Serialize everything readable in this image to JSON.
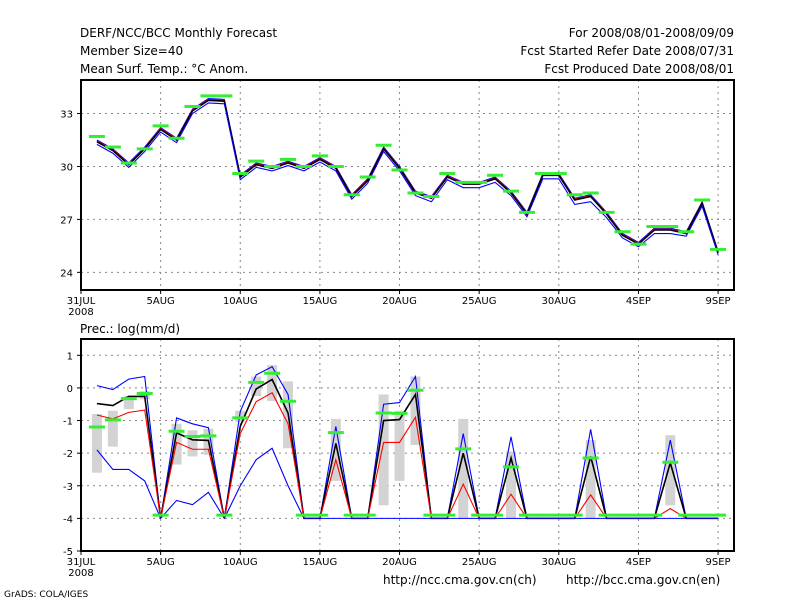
{
  "header": {
    "title": "DERF/NCC/BCC Monthly Forecast",
    "member_size": "Member Size=40",
    "variable": "Mean Surf. Temp.: °C Anom.",
    "period": "For 2008/08/01-2008/09/09",
    "started": "Fcst Started Refer Date 2008/07/31",
    "produced": "Fcst Produced Date 2008/08/01"
  },
  "footer": {
    "url_ch": "http://ncc.cma.gov.cn(ch)",
    "url_en": "http://bcc.cma.gov.cn(en)",
    "credit": "GrADS: COLA/IGES"
  },
  "colors": {
    "mean": "#000000",
    "red": "#ff0000",
    "blue": "#0000ff",
    "obs": "#33ee33",
    "range": "#d3d3d3"
  },
  "chart_data": [
    {
      "type": "line",
      "title": "Mean Surf. Temp.: °C Anom.",
      "xlabel": "",
      "ylabel": "",
      "x_days_from": "31JUL2008",
      "xlim": [
        0,
        41
      ],
      "ylim": [
        23,
        34.9
      ],
      "yticks": [
        24,
        27,
        30,
        33
      ],
      "xticks": [
        {
          "day": 0,
          "label": "31JUL",
          "sub": "2008"
        },
        {
          "day": 5,
          "label": "5AUG"
        },
        {
          "day": 10,
          "label": "10AUG"
        },
        {
          "day": 15,
          "label": "15AUG"
        },
        {
          "day": 20,
          "label": "20AUG"
        },
        {
          "day": 25,
          "label": "25AUG"
        },
        {
          "day": 30,
          "label": "30AUG"
        },
        {
          "day": 35,
          "label": "4SEP"
        },
        {
          "day": 40,
          "label": "9SEP"
        }
      ],
      "grid": true,
      "days": [
        1,
        2,
        3,
        4,
        5,
        6,
        7,
        8,
        9,
        10,
        11,
        12,
        13,
        14,
        15,
        16,
        17,
        18,
        19,
        20,
        21,
        22,
        23,
        24,
        25,
        26,
        27,
        28,
        29,
        30,
        31,
        32,
        33,
        34,
        35,
        36,
        37,
        38,
        39,
        40
      ],
      "series": [
        {
          "name": "blue-upper",
          "color": "#0000ff",
          "values": [
            31.5,
            31.0,
            30.2,
            31.1,
            32.2,
            31.6,
            33.25,
            33.85,
            33.8,
            29.5,
            30.2,
            30.0,
            30.3,
            30.0,
            30.5,
            30.0,
            28.4,
            29.3,
            31.1,
            30.0,
            28.6,
            28.3,
            29.5,
            29.1,
            29.1,
            29.4,
            28.6,
            27.4,
            29.6,
            29.6,
            28.2,
            28.4,
            27.4,
            26.2,
            25.7,
            26.5,
            26.5,
            26.3,
            28.0,
            25.2
          ]
        },
        {
          "name": "red",
          "color": "#ff0000",
          "values": [
            31.45,
            30.95,
            30.15,
            31.05,
            32.15,
            31.55,
            33.2,
            33.8,
            33.75,
            29.45,
            30.15,
            29.95,
            30.25,
            29.95,
            30.45,
            29.95,
            28.35,
            29.25,
            31.05,
            29.95,
            28.55,
            28.25,
            29.45,
            29.05,
            29.05,
            29.35,
            28.55,
            27.35,
            29.55,
            29.55,
            28.15,
            28.35,
            27.35,
            26.15,
            25.65,
            26.45,
            26.45,
            26.25,
            27.95,
            25.15
          ]
        },
        {
          "name": "ensemble-mean",
          "color": "#000000",
          "values": [
            31.4,
            30.9,
            30.1,
            31.0,
            32.1,
            31.5,
            33.15,
            33.75,
            33.7,
            29.4,
            30.1,
            29.9,
            30.2,
            29.9,
            30.4,
            29.9,
            28.3,
            29.2,
            31.0,
            29.9,
            28.5,
            28.2,
            29.4,
            29.0,
            29.0,
            29.3,
            28.5,
            27.3,
            29.5,
            29.5,
            28.1,
            28.3,
            27.3,
            26.1,
            25.6,
            26.4,
            26.4,
            26.2,
            27.9,
            25.1
          ]
        },
        {
          "name": "blue-lower",
          "color": "#0000ff",
          "values": [
            31.25,
            30.75,
            29.95,
            30.85,
            31.95,
            31.35,
            33.0,
            33.6,
            33.55,
            29.25,
            29.95,
            29.75,
            30.05,
            29.75,
            30.25,
            29.75,
            28.15,
            29.05,
            30.85,
            29.75,
            28.35,
            28.0,
            29.25,
            28.8,
            28.8,
            29.1,
            28.35,
            27.15,
            29.3,
            29.3,
            27.85,
            28.0,
            27.1,
            25.95,
            25.45,
            26.2,
            26.2,
            26.05,
            27.75,
            25.0
          ]
        }
      ],
      "observed": [
        31.7,
        31.1,
        30.2,
        31.0,
        32.3,
        31.6,
        33.4,
        34.0,
        34.0,
        29.6,
        30.3,
        30.0,
        30.4,
        30.0,
        30.6,
        30.0,
        28.4,
        29.4,
        31.2,
        29.8,
        28.5,
        28.3,
        29.6,
        29.1,
        29.1,
        29.5,
        28.6,
        27.4,
        29.6,
        29.6,
        28.4,
        28.5,
        27.4,
        26.3,
        25.6,
        26.6,
        26.6,
        26.3,
        28.1,
        25.3
      ]
    },
    {
      "type": "line",
      "title": "Prec.: log(mm/d)",
      "xlabel": "",
      "ylabel": "",
      "x_days_from": "31JUL2008",
      "xlim": [
        0,
        41
      ],
      "ylim": [
        -5,
        1.5
      ],
      "yticks": [
        -5,
        -4,
        -3,
        -2,
        -1,
        0,
        1
      ],
      "xticks": [
        {
          "day": 0,
          "label": "31JUL",
          "sub": "2008"
        },
        {
          "day": 5,
          "label": "5AUG"
        },
        {
          "day": 10,
          "label": "10AUG"
        },
        {
          "day": 15,
          "label": "15AUG"
        },
        {
          "day": 20,
          "label": "20AUG"
        },
        {
          "day": 25,
          "label": "25AUG"
        },
        {
          "day": 30,
          "label": "30AUG"
        },
        {
          "day": 35,
          "label": "4SEP"
        },
        {
          "day": 40,
          "label": "9SEP"
        }
      ],
      "grid": true,
      "days": [
        1,
        2,
        3,
        4,
        5,
        6,
        7,
        8,
        9,
        10,
        11,
        12,
        13,
        14,
        15,
        16,
        17,
        18,
        19,
        20,
        21,
        22,
        23,
        24,
        25,
        26,
        27,
        28,
        29,
        30,
        31,
        32,
        33,
        34,
        35,
        36,
        37,
        38,
        39,
        40
      ],
      "series": [
        {
          "name": "blue-upper",
          "color": "#0000ff",
          "values": [
            0.07,
            -0.05,
            0.27,
            0.35,
            -4,
            -0.92,
            -1.1,
            -1.22,
            -4,
            -0.72,
            0.4,
            0.65,
            -0.2,
            -4,
            -4,
            -1.18,
            -4,
            -4,
            -0.5,
            -0.45,
            0.35,
            -4,
            -4,
            -1.4,
            -4,
            -4,
            -1.5,
            -4,
            -4,
            -4,
            -4,
            -1.27,
            -4,
            -4,
            -4,
            -4,
            -1.6,
            -4,
            -4,
            -4
          ]
        },
        {
          "name": "ensemble-mean",
          "color": "#000000",
          "values": [
            -0.48,
            -0.54,
            -0.26,
            -0.26,
            -4,
            -1.38,
            -1.59,
            -1.61,
            -4,
            -1.18,
            -0.03,
            0.26,
            -0.77,
            -4,
            -4,
            -1.7,
            -4,
            -4,
            -1.0,
            -0.97,
            -0.2,
            -4,
            -4,
            -2.0,
            -4,
            -4,
            -2.15,
            -4,
            -4,
            -4,
            -4,
            -2.1,
            -4,
            -4,
            -4,
            -4,
            -2.3,
            -4,
            -4,
            -4
          ]
        },
        {
          "name": "red",
          "color": "#ff0000",
          "values": [
            -0.83,
            -0.95,
            -0.75,
            -0.68,
            -4,
            -1.67,
            -1.88,
            -1.88,
            -4,
            -1.4,
            -0.42,
            -0.15,
            -1.1,
            -4,
            -4,
            -2.2,
            -4,
            -4,
            -1.67,
            -1.67,
            -0.9,
            -4,
            -4,
            -2.95,
            -4,
            -4,
            -3.26,
            -4,
            -4,
            -4,
            -4,
            -3.28,
            -4,
            -4,
            -4,
            -4,
            -3.7,
            -4,
            -4,
            -4
          ]
        },
        {
          "name": "blue-lower",
          "color": "#0000ff",
          "values": [
            -1.9,
            -2.5,
            -2.5,
            -2.85,
            -4,
            -3.45,
            -3.58,
            -3.2,
            -4,
            -3.0,
            -2.2,
            -1.85,
            -3.0,
            -4,
            -4,
            -4,
            -4,
            -4,
            -4,
            -4,
            -4,
            -4,
            -4,
            -4,
            -4,
            -4,
            -4,
            -4,
            -4,
            -4,
            -4,
            -4,
            -4,
            -4,
            -4,
            -4,
            -4,
            -4,
            -4,
            -4
          ]
        }
      ],
      "observed": [
        -1.2,
        -0.98,
        -0.33,
        -0.17,
        -3.9,
        -1.33,
        -1.49,
        -1.47,
        -3.9,
        -0.92,
        0.17,
        0.45,
        -0.41,
        -3.9,
        -3.9,
        -1.37,
        -3.9,
        -3.9,
        -0.77,
        -0.78,
        -0.07,
        -3.9,
        -3.9,
        -1.87,
        -3.9,
        -3.9,
        -2.42,
        -3.9,
        -3.9,
        -3.9,
        -3.9,
        -2.15,
        -3.9,
        -3.9,
        -3.9,
        -3.9,
        -2.28,
        -3.9,
        -3.9,
        -3.9
      ],
      "ranges": [
        {
          "day": 1,
          "low": -2.6,
          "high": -0.8
        },
        {
          "day": 2,
          "low": -1.8,
          "high": -0.7
        },
        {
          "day": 3,
          "low": -0.65,
          "high": -0.25
        },
        {
          "day": 4,
          "low": -0.35,
          "high": -0.1
        },
        {
          "day": 6,
          "low": -2.35,
          "high": -1.1
        },
        {
          "day": 7,
          "low": -2.1,
          "high": -1.3
        },
        {
          "day": 8,
          "low": -2.05,
          "high": -1.25
        },
        {
          "day": 10,
          "low": -1.05,
          "high": -0.7
        },
        {
          "day": 11,
          "low": -0.25,
          "high": 0.35
        },
        {
          "day": 12,
          "low": -0.4,
          "high": 0.7
        },
        {
          "day": 13,
          "low": -1.85,
          "high": 0.2
        },
        {
          "day": 16,
          "low": -2.85,
          "high": -0.95
        },
        {
          "day": 19,
          "low": -3.6,
          "high": -0.2
        },
        {
          "day": 20,
          "low": -2.85,
          "high": -0.7
        },
        {
          "day": 21,
          "low": -1.75,
          "high": 0.35
        },
        {
          "day": 24,
          "low": -4,
          "high": -0.95
        },
        {
          "day": 27,
          "low": -4,
          "high": -1.95
        },
        {
          "day": 32,
          "low": -4,
          "high": -1.6
        },
        {
          "day": 37,
          "low": -3.6,
          "high": -1.45
        }
      ]
    }
  ]
}
